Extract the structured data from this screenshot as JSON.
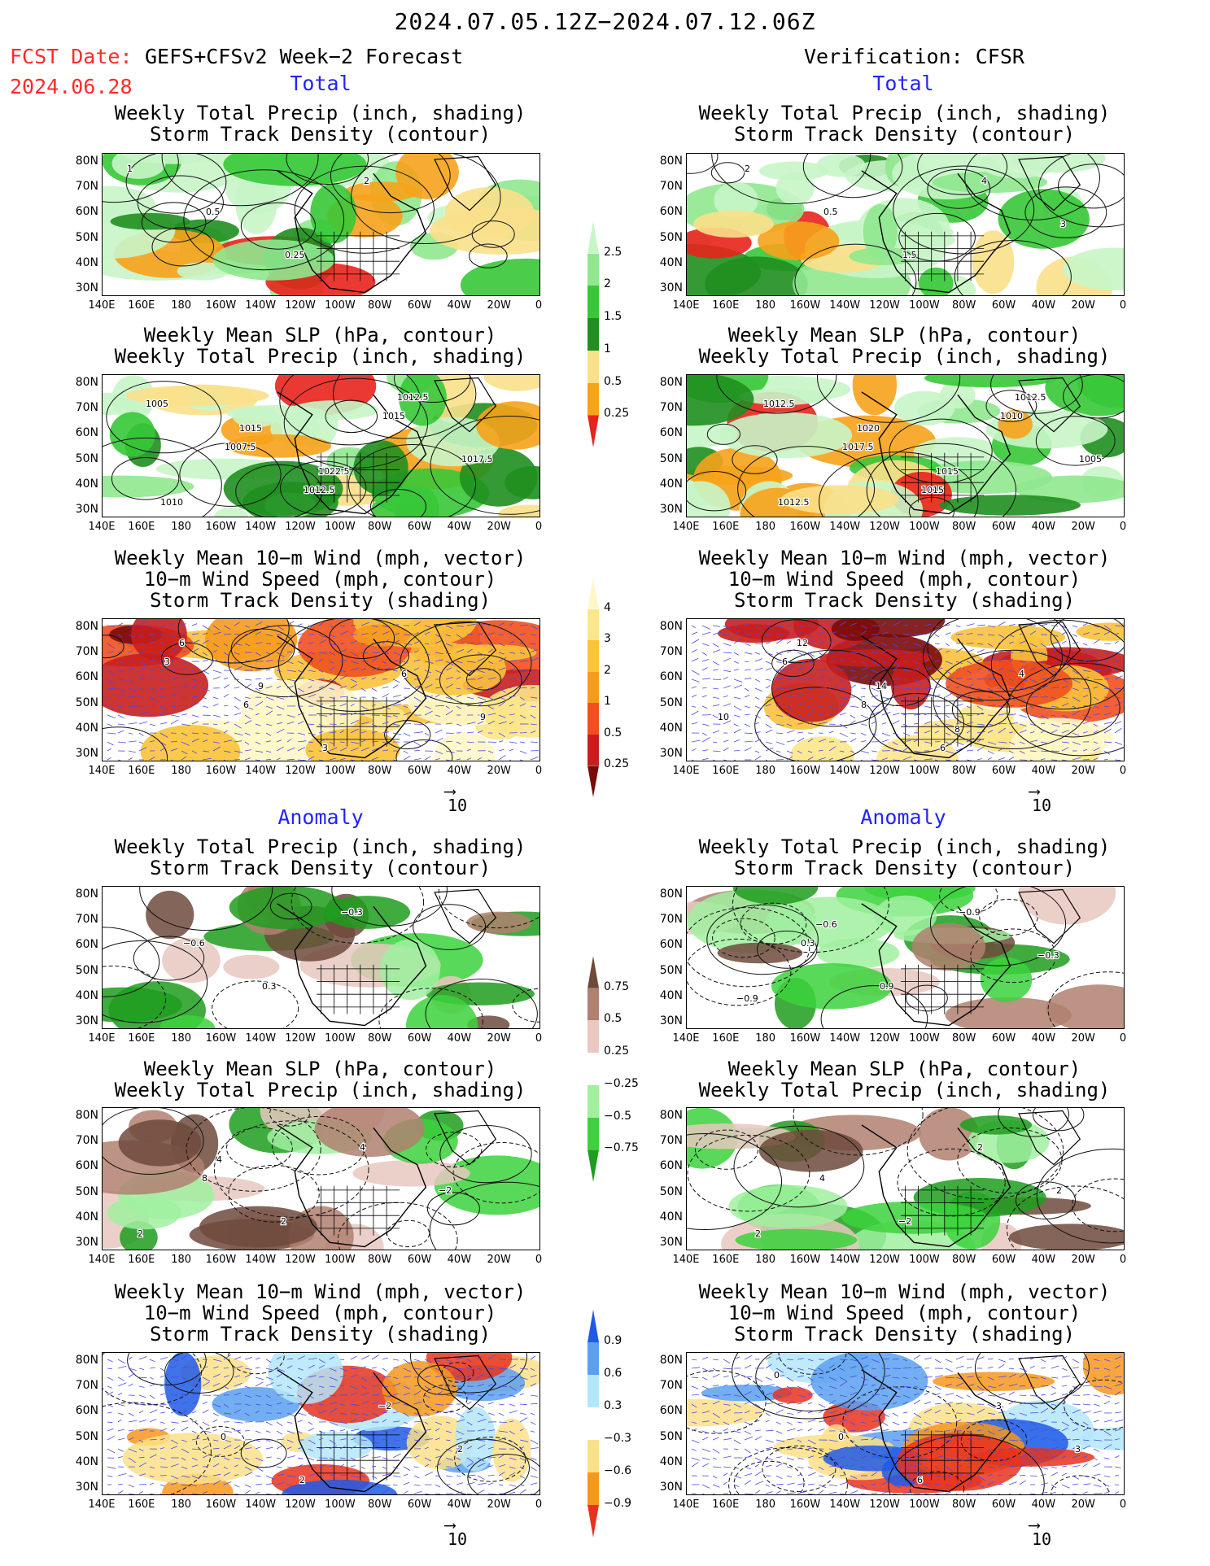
{
  "header": {
    "period": "2024.07.05.12Z−2024.07.12.06Z",
    "fcst_label": "FCST Date:",
    "model": "GEFS+CFSv2 Week−2 Forecast",
    "fcst_date": "2024.06.28",
    "verification": "Verification: CFSR"
  },
  "sections": {
    "total": "Total",
    "anomaly": "Anomaly"
  },
  "panel_titles": {
    "precip_storm": "Weekly Total Precip (inch, shading)\nStorm Track Density (contour)",
    "slp_precip": "Weekly Mean SLP (hPa, contour)\nWeekly Total Precip (inch, shading)",
    "wind_storm": "Weekly Mean 10−m Wind (mph, vector)\n10−m Wind Speed (mph, contour)\nStorm Track Density (shading)"
  },
  "axes": {
    "lat_labels": [
      "80N",
      "70N",
      "60N",
      "50N",
      "40N",
      "30N"
    ],
    "lon_labels": [
      "140E",
      "160E",
      "180",
      "160W",
      "140W",
      "120W",
      "100W",
      "80W",
      "60W",
      "40W",
      "20W",
      "0"
    ]
  },
  "ref_vector": "10",
  "colorbars": {
    "total_precip": {
      "ticks": [
        "2.5",
        "2",
        "1.5",
        "1",
        "0.5",
        "0.25"
      ],
      "colors": [
        "#e8231c",
        "#f7a21b",
        "#fbe08a",
        "#1f8f1f",
        "#37c837",
        "#8fe88f",
        "#c8f5c8"
      ]
    },
    "total_storm": {
      "ticks": [
        "4",
        "3",
        "2",
        "1",
        "0.5",
        "0.25"
      ],
      "colors": [
        "#7a0a0a",
        "#c81e1e",
        "#f0501e",
        "#f79a1e",
        "#fbc23c",
        "#fde68a",
        "#fff7c8"
      ]
    },
    "anom_precip": {
      "ticks": [
        "0.75",
        "0.5",
        "0.25",
        "−0.25",
        "−0.5",
        "−0.75"
      ],
      "colors": [
        "#1e9e1e",
        "#3cd23c",
        "#a0f0a0",
        "#ffffff",
        "#e8c8c0",
        "#b08070",
        "#6e4a3c"
      ]
    },
    "anom_storm": {
      "ticks": [
        "0.9",
        "0.6",
        "0.3",
        "−0.3",
        "−0.6",
        "−0.9"
      ],
      "colors": [
        "#e8321e",
        "#f7961e",
        "#fbe08a",
        "#ffffff",
        "#b4e6fa",
        "#5aa0f0",
        "#1e5ae6"
      ]
    }
  },
  "contour_labels": {
    "f_total_precip": [
      "1",
      "0.5",
      "0.25",
      "2"
    ],
    "v_total_precip": [
      "2",
      "0.5",
      "1.5",
      "4",
      "3"
    ],
    "f_total_slp": [
      "1005",
      "1007.5",
      "1012.5",
      "1015",
      "1017.5",
      "1010",
      "1015",
      "1022.5",
      "1012.5"
    ],
    "v_total_slp": [
      "1012.5",
      "1017.5",
      "1015",
      "1010",
      "1005",
      "1012.5",
      "1020",
      "1015",
      "1012.5"
    ],
    "f_total_wind": [
      "3",
      "6",
      "3",
      "6",
      "9",
      "6",
      "9"
    ],
    "v_total_wind": [
      "6",
      "8",
      "6",
      "4",
      "10",
      "12",
      "14",
      "8"
    ],
    "f_anom_precip": [
      "−0.6",
      "0.3",
      "−0.3"
    ],
    "v_anom_precip": [
      "0.3",
      "0.9",
      "−0.9",
      "−0.3",
      "−0.9",
      "−0.6"
    ],
    "f_anom_slp": [
      "8",
      "2",
      "4",
      "−2",
      "2",
      "4"
    ],
    "v_anom_slp": [
      "4",
      "−2",
      "2",
      "2",
      "2"
    ],
    "f_anom_wind": [
      "0",
      "2",
      "−2",
      "2"
    ],
    "v_anom_wind": [
      "0",
      "6",
      "3",
      "3",
      "0"
    ]
  }
}
